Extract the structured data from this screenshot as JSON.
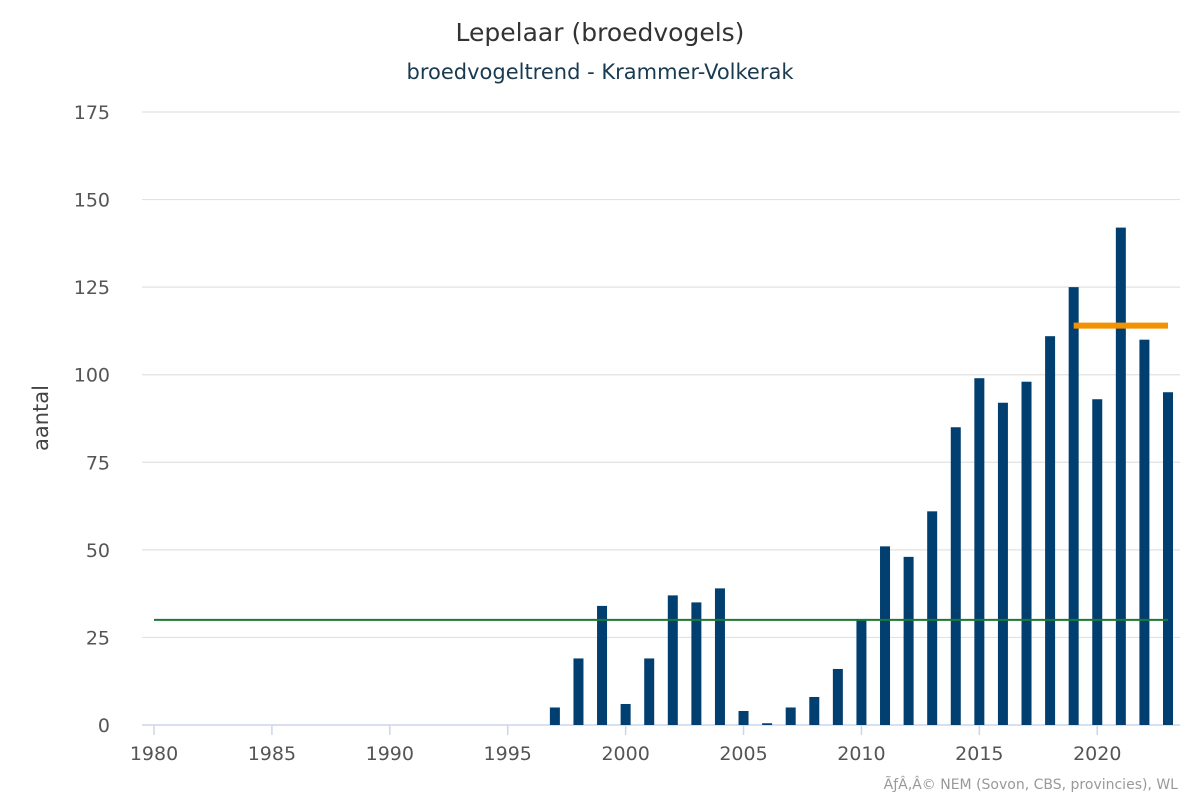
{
  "chart_data": {
    "type": "bar",
    "title": "Lepelaar (broedvogels)",
    "subtitle": "broedvogeltrend - Krammer-Volkerak",
    "xlabel": "",
    "ylabel": "aantal",
    "xlim": [
      1980,
      2023
    ],
    "ylim": [
      0,
      175
    ],
    "x_ticks": [
      1980,
      1985,
      1990,
      1995,
      2000,
      2005,
      2010,
      2015,
      2020
    ],
    "y_ticks": [
      0,
      25,
      50,
      75,
      100,
      125,
      150,
      175
    ],
    "grid": true,
    "legend": "none",
    "credits": "ÃƒÂ‚Â© NEM (Sovon, CBS, provincies), WL",
    "colors": {
      "bars": "#003f6f",
      "reference_line": "#1b7a32",
      "recent_mean_line": "#f39200"
    },
    "x": [
      1997,
      1998,
      1999,
      2000,
      2001,
      2002,
      2003,
      2004,
      2005,
      2006,
      2007,
      2008,
      2009,
      2010,
      2011,
      2012,
      2013,
      2014,
      2015,
      2016,
      2017,
      2018,
      2019,
      2020,
      2021,
      2022,
      2023
    ],
    "values": [
      5,
      19,
      34,
      6,
      19,
      37,
      35,
      39,
      4,
      0.5,
      5,
      8,
      16,
      30,
      51,
      48,
      61,
      85,
      99,
      92,
      98,
      111,
      125,
      93,
      142,
      110,
      95
    ],
    "reference_lines": [
      {
        "value": 30,
        "from_year": 1980,
        "to_year": 2023,
        "color": "#1b7a32"
      },
      {
        "value": 114,
        "from_year": 2019,
        "to_year": 2023,
        "color": "#f39200"
      }
    ]
  }
}
